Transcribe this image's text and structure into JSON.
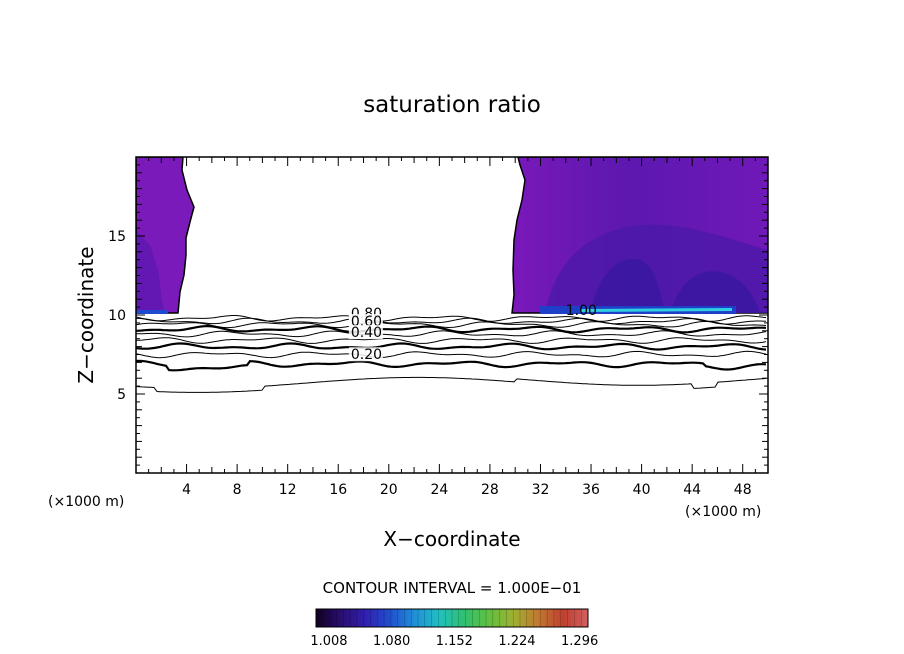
{
  "chart_data": {
    "type": "contour",
    "title": "saturation ratio",
    "xlabel": "X−coordinate",
    "ylabel": "Z−coordinate",
    "x_unit": "(×1000 m)",
    "y_unit": "(×1000 m)",
    "xlim": [
      0,
      50
    ],
    "ylim": [
      0,
      20
    ],
    "x_ticks": [
      4,
      8,
      12,
      16,
      20,
      24,
      28,
      32,
      36,
      40,
      44,
      48
    ],
    "y_ticks": [
      5,
      10,
      15
    ],
    "contour_interval_text": "CONTOUR INTERVAL = 1.000E−01",
    "contour_labels": [
      {
        "text": "0.80",
        "x": 17.0,
        "z": 9.8
      },
      {
        "text": "0.60",
        "x": 17.0,
        "z": 9.3
      },
      {
        "text": "0.40",
        "x": 17.0,
        "z": 8.6
      },
      {
        "text": "0.20",
        "x": 17.0,
        "z": 7.2
      },
      {
        "text": "1.00",
        "x": 34.0,
        "z": 10.0
      }
    ],
    "contour_levels_z_at_x0": [
      5.7,
      6.9,
      7.5,
      8.0,
      8.4,
      8.8,
      9.1,
      9.4,
      9.6,
      9.8
    ],
    "colorbar": {
      "tick_labels": [
        "1.008",
        "1.080",
        "1.152",
        "1.224",
        "1.296"
      ],
      "range": [
        1.0,
        1.3
      ],
      "colors": [
        "#120020",
        "#2a0e70",
        "#3020b0",
        "#2050d0",
        "#2090d8",
        "#20c0c0",
        "#30c070",
        "#60c040",
        "#a0b030",
        "#c07830",
        "#c04030",
        "#d06060"
      ]
    },
    "supersaturated_regions": [
      {
        "name": "left",
        "x_range": [
          0,
          3.5
        ],
        "z_range": [
          10,
          20
        ]
      },
      {
        "name": "right",
        "x_range": [
          29.8,
          50
        ],
        "z_range": [
          10,
          20
        ]
      }
    ]
  }
}
